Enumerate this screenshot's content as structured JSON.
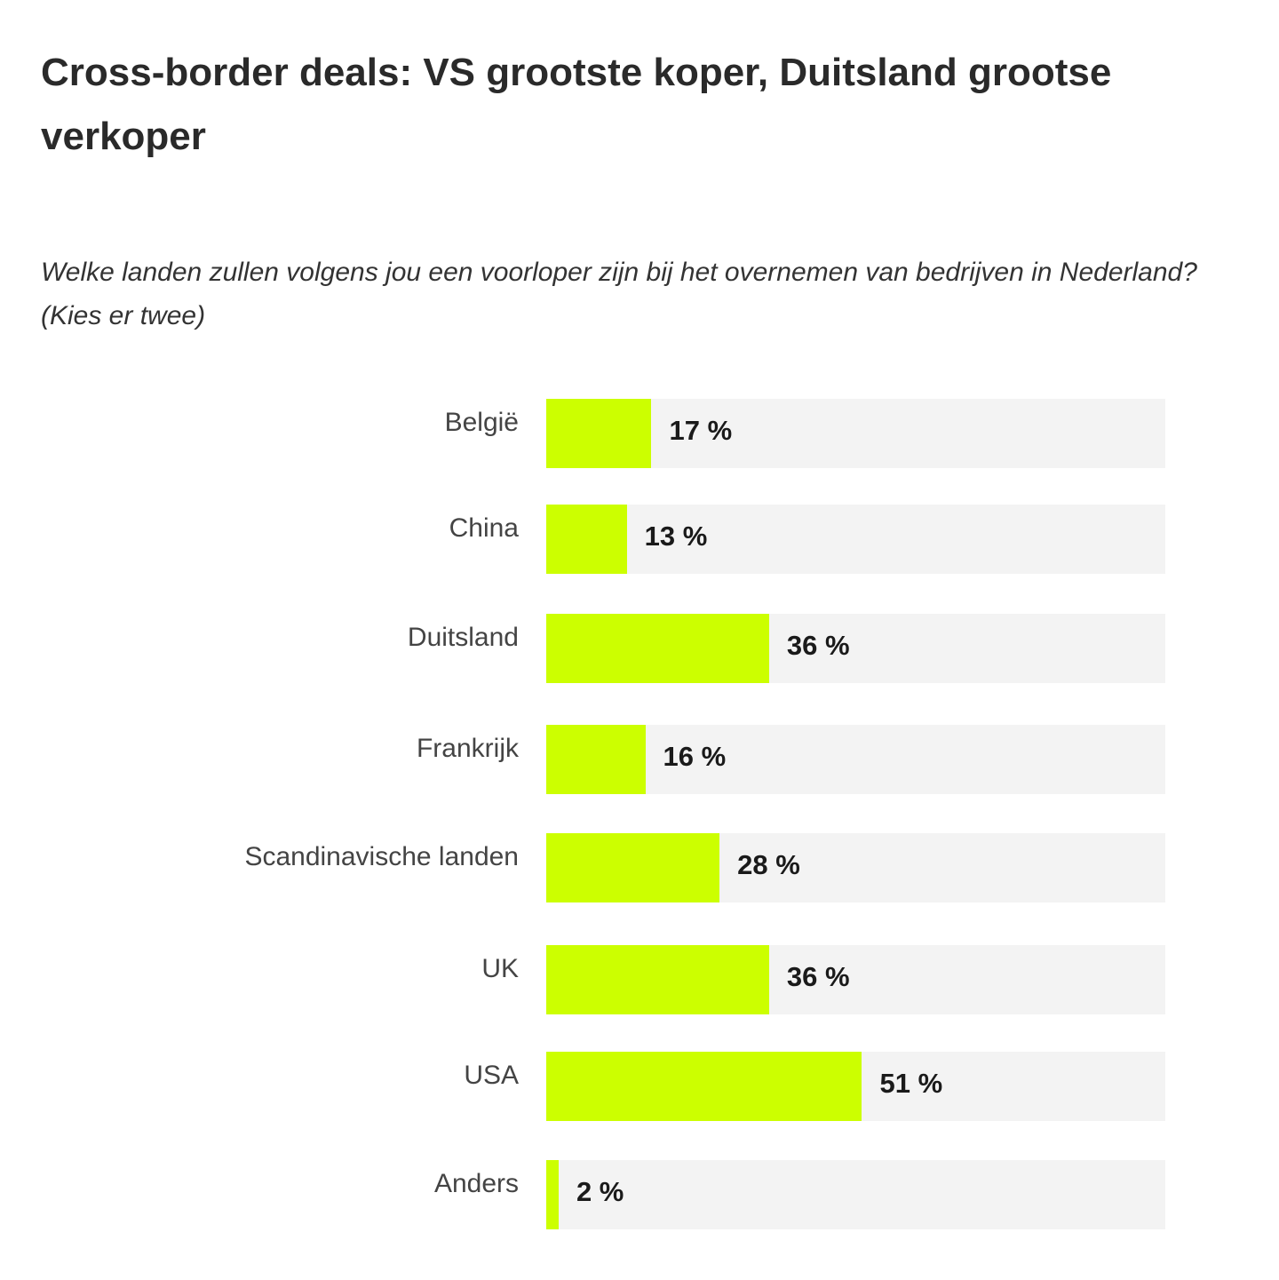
{
  "title": "Cross-border deals: VS grootste koper, Duitsland grootse verkoper",
  "subtitle": "Welke landen zullen volgens jou een voorloper zijn bij het overnemen van bedrijven in Nederland? (Kies er twee)",
  "colors": {
    "bar": "#ccff00",
    "track": "#f3f3f3"
  },
  "chart_data": {
    "type": "bar",
    "orientation": "horizontal",
    "title": "Cross-border deals: VS grootste koper, Duitsland grootse verkoper",
    "subtitle": "Welke landen zullen volgens jou een voorloper zijn bij het overnemen van bedrijven in Nederland? (Kies er twee)",
    "categories": [
      "België",
      "China",
      "Duitsland",
      "Frankrijk",
      "Scandinavische landen",
      "UK",
      "USA",
      "Anders"
    ],
    "values": [
      17,
      13,
      36,
      16,
      28,
      36,
      51,
      2
    ],
    "labels": [
      "17 %",
      "13 %",
      "36 %",
      "16 %",
      "28 %",
      "36 %",
      "51 %",
      "2 %"
    ],
    "xlim": [
      0,
      100
    ],
    "xlabel": "",
    "ylabel": ""
  }
}
